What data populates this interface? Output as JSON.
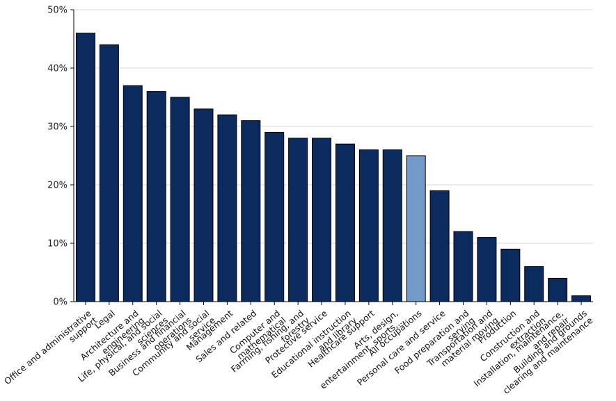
{
  "chart_data": {
    "type": "bar",
    "title": "",
    "xlabel": "",
    "ylabel": "",
    "ylim": [
      0,
      50
    ],
    "y_ticks": [
      0,
      10,
      20,
      30,
      40,
      50
    ],
    "y_tick_suffix": "%",
    "grid": true,
    "colors": {
      "default": "#0b2a5e",
      "highlight": "#7399c8"
    },
    "highlight_category": "All occupations",
    "categories": [
      "Office and administrative support",
      "Legal",
      "Architecture and engineering",
      "Life, physical, and social sciences",
      "Business and financial operations",
      "Community and social service",
      "Management",
      "Sales and related",
      "Computer and mathematical",
      "Farming, fishing, and forestry",
      "Protective service",
      "Educational instruction and library",
      "Healthcare support",
      "Arts, design, entertainment, sports,...",
      "All occupations",
      "Personal care and service",
      "Food preparation and serving",
      "Transportation and material moving",
      "Production",
      "Construction and extraction",
      "Installation, maintenance, and repair",
      "Building and grounds clearing and maintenance"
    ],
    "label_lines": [
      [
        "Office and administrative",
        "support"
      ],
      [
        "Legal"
      ],
      [
        "Architecture and",
        "engineering"
      ],
      [
        "Life, physical, and social",
        "sciences"
      ],
      [
        "Business and financial",
        "operations"
      ],
      [
        "Community and social",
        "service"
      ],
      [
        "Management"
      ],
      [
        "Sales and related"
      ],
      [
        "Computer and",
        "mathematical"
      ],
      [
        "Farming, fishing, and",
        "forestry"
      ],
      [
        "Protective service"
      ],
      [
        "Educational instruction",
        "and library"
      ],
      [
        "Healthcare support"
      ],
      [
        "Arts, design,",
        "entertainment, sports,..."
      ],
      [
        "All occupations"
      ],
      [
        "Personal care and service"
      ],
      [
        "Food preparation and",
        "serving"
      ],
      [
        "Transportation and",
        "material moving"
      ],
      [
        "Production"
      ],
      [
        "Construction and",
        "extraction"
      ],
      [
        "Installation, maintenance,",
        "and repair"
      ],
      [
        "Building and grounds",
        "clearing and maintenance"
      ]
    ],
    "values": [
      46,
      44,
      37,
      36,
      35,
      33,
      32,
      31,
      29,
      28,
      28,
      27,
      26,
      26,
      25,
      19,
      12,
      11,
      9,
      6,
      4,
      1
    ]
  }
}
